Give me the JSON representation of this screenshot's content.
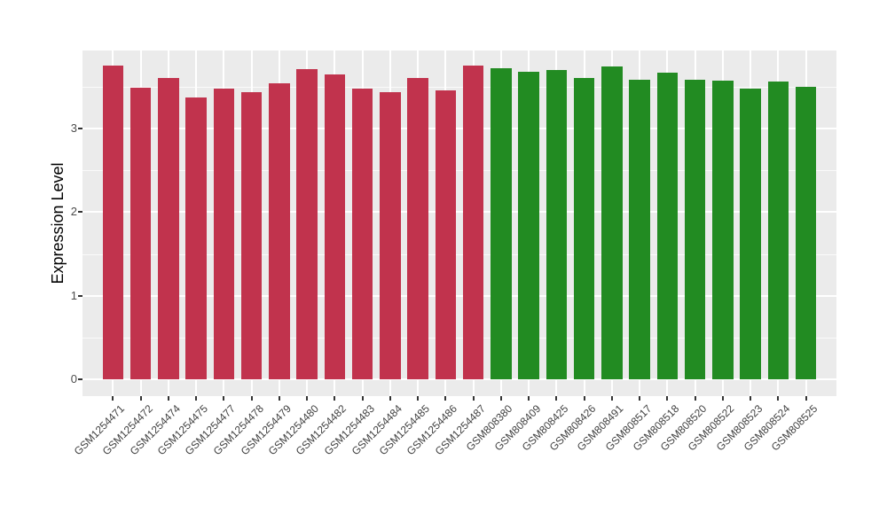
{
  "chart_data": {
    "type": "bar",
    "title": "",
    "xlabel": "",
    "ylabel": "Expression Level",
    "ylim": [
      0,
      3.93
    ],
    "yticks": [
      0,
      1,
      2,
      3
    ],
    "ytick_labels": [
      "0",
      "1",
      "2",
      "3"
    ],
    "minor_ytick_step": 0.5,
    "grid": {
      "show": true,
      "major_color": "#FFFFFF",
      "minor_color": "#FFFFFF"
    },
    "panel_background": "#EBEBEB",
    "figure_background": "#FFFFFF",
    "tick_mark_color": "#333333",
    "axis_text_color": "#4D4D4D",
    "legend_position": "none",
    "categories": [
      "GSM1254471",
      "GSM1254472",
      "GSM1254474",
      "GSM1254475",
      "GSM1254477",
      "GSM1254478",
      "GSM1254479",
      "GSM1254480",
      "GSM1254482",
      "GSM1254483",
      "GSM1254484",
      "GSM1254485",
      "GSM1254486",
      "GSM1254487",
      "GSM808380",
      "GSM808409",
      "GSM808425",
      "GSM808426",
      "GSM808491",
      "GSM808517",
      "GSM808518",
      "GSM808520",
      "GSM808522",
      "GSM808523",
      "GSM808524",
      "GSM808525"
    ],
    "values": [
      3.75,
      3.49,
      3.6,
      3.37,
      3.48,
      3.43,
      3.54,
      3.71,
      3.65,
      3.48,
      3.43,
      3.6,
      3.46,
      3.75,
      3.72,
      3.68,
      3.7,
      3.6,
      3.74,
      3.58,
      3.67,
      3.58,
      3.57,
      3.48,
      3.56,
      3.5
    ],
    "groups": [
      "groupA",
      "groupA",
      "groupA",
      "groupA",
      "groupA",
      "groupA",
      "groupA",
      "groupA",
      "groupA",
      "groupA",
      "groupA",
      "groupA",
      "groupA",
      "groupA",
      "groupB",
      "groupB",
      "groupB",
      "groupB",
      "groupB",
      "groupB",
      "groupB",
      "groupB",
      "groupB",
      "groupB",
      "groupB",
      "groupB"
    ],
    "group_colors": {
      "groupA": "#C1334D",
      "groupB": "#228B22"
    }
  }
}
